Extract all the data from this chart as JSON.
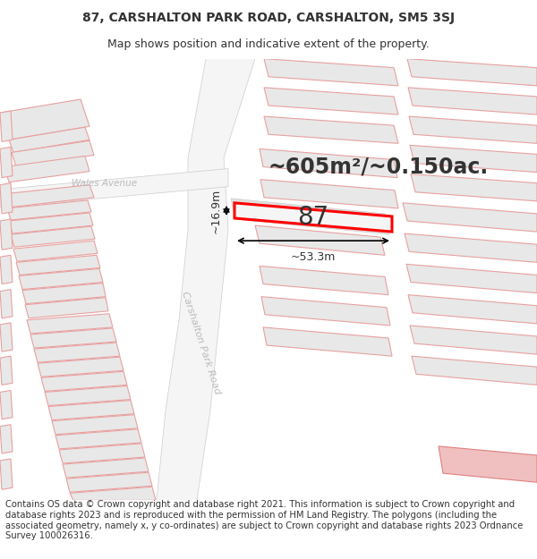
{
  "title_line1": "87, CARSHALTON PARK ROAD, CARSHALTON, SM5 3SJ",
  "title_line2": "Map shows position and indicative extent of the property.",
  "footer_text": "Contains OS data © Crown copyright and database right 2021. This information is subject to Crown copyright and database rights 2023 and is reproduced with the permission of HM Land Registry. The polygons (including the associated geometry, namely x, y co-ordinates) are subject to Crown copyright and database rights 2023 Ordnance Survey 100026316.",
  "area_label": "~605m²/~0.150ac.",
  "width_label": "~53.3m",
  "height_label": "~16.9m",
  "property_number": "87",
  "bg_color": "#ffffff",
  "building_fill": "#e8e8e8",
  "outline_color": "#e8a0a0",
  "highlight_color": "#ff0000",
  "text_color": "#333333",
  "road_label_color": "#bbbbbb",
  "title_fontsize": 10,
  "subtitle_fontsize": 9,
  "footer_fontsize": 7.2,
  "area_fontsize": 17,
  "prop_num_fontsize": 20,
  "dim_fontsize": 9
}
